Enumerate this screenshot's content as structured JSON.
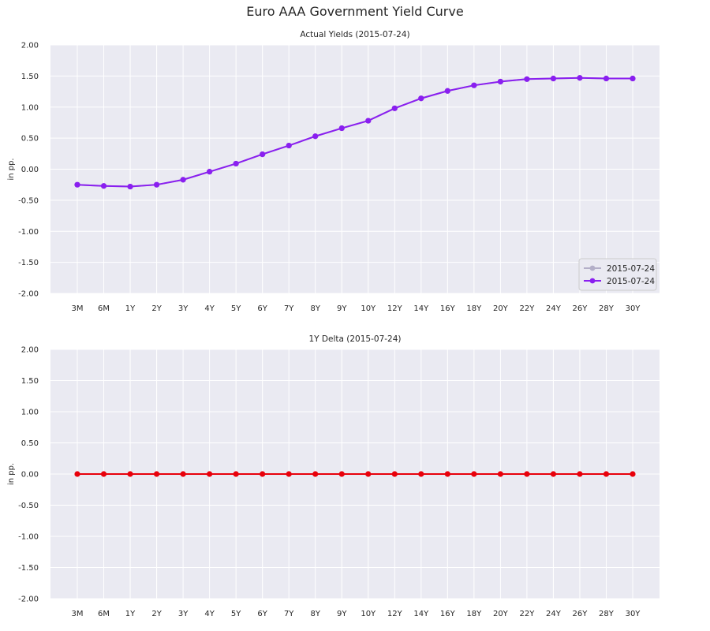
{
  "figure": {
    "suptitle": "Euro AAA Government Yield Curve"
  },
  "chart_data": [
    {
      "type": "line",
      "title": "Actual Yields (2015-07-24)",
      "xlabel": "",
      "ylabel": "in pp.",
      "ylim": [
        -2.0,
        2.0
      ],
      "yticks": [
        "2.00",
        "1.50",
        "1.00",
        "0.50",
        "0.00",
        "-0.50",
        "-1.00",
        "-1.50",
        "-2.00"
      ],
      "ytick_values": [
        2.0,
        1.5,
        1.0,
        0.5,
        0.0,
        -0.5,
        -1.0,
        -1.5,
        -2.0
      ],
      "categories": [
        "3M",
        "6M",
        "1Y",
        "2Y",
        "3Y",
        "4Y",
        "5Y",
        "6Y",
        "7Y",
        "8Y",
        "9Y",
        "10Y",
        "12Y",
        "14Y",
        "16Y",
        "18Y",
        "20Y",
        "22Y",
        "24Y",
        "26Y",
        "28Y",
        "30Y"
      ],
      "grid": true,
      "legend_loc": "lower-right",
      "series": [
        {
          "name": "2015-07-24",
          "color": "#b3afc8",
          "values": [
            -0.25,
            -0.27,
            -0.28,
            -0.25,
            -0.17,
            -0.04,
            0.09,
            0.24,
            0.38,
            0.53,
            0.66,
            0.78,
            0.98,
            1.14,
            1.26,
            1.35,
            1.41,
            1.45,
            1.46,
            1.47,
            1.46,
            1.46
          ]
        },
        {
          "name": "2015-07-24",
          "color": "#8a1ff0",
          "values": [
            -0.25,
            -0.27,
            -0.28,
            -0.25,
            -0.17,
            -0.04,
            0.09,
            0.24,
            0.38,
            0.53,
            0.66,
            0.78,
            0.98,
            1.14,
            1.26,
            1.35,
            1.41,
            1.45,
            1.46,
            1.47,
            1.46,
            1.46
          ]
        }
      ]
    },
    {
      "type": "line",
      "title": "1Y Delta (2015-07-24)",
      "xlabel": "",
      "ylabel": "in pp.",
      "ylim": [
        -2.0,
        2.0
      ],
      "yticks": [
        "2.00",
        "1.50",
        "1.00",
        "0.50",
        "0.00",
        "-0.50",
        "-1.00",
        "-1.50",
        "-2.00"
      ],
      "ytick_values": [
        2.0,
        1.5,
        1.0,
        0.5,
        0.0,
        -0.5,
        -1.0,
        -1.5,
        -2.0
      ],
      "categories": [
        "3M",
        "6M",
        "1Y",
        "2Y",
        "3Y",
        "4Y",
        "5Y",
        "6Y",
        "7Y",
        "8Y",
        "9Y",
        "10Y",
        "12Y",
        "14Y",
        "16Y",
        "18Y",
        "20Y",
        "22Y",
        "24Y",
        "26Y",
        "28Y",
        "30Y"
      ],
      "grid": true,
      "series": [
        {
          "color": "#e8000b",
          "values": [
            0,
            0,
            0,
            0,
            0,
            0,
            0,
            0,
            0,
            0,
            0,
            0,
            0,
            0,
            0,
            0,
            0,
            0,
            0,
            0,
            0,
            0
          ]
        }
      ]
    }
  ]
}
